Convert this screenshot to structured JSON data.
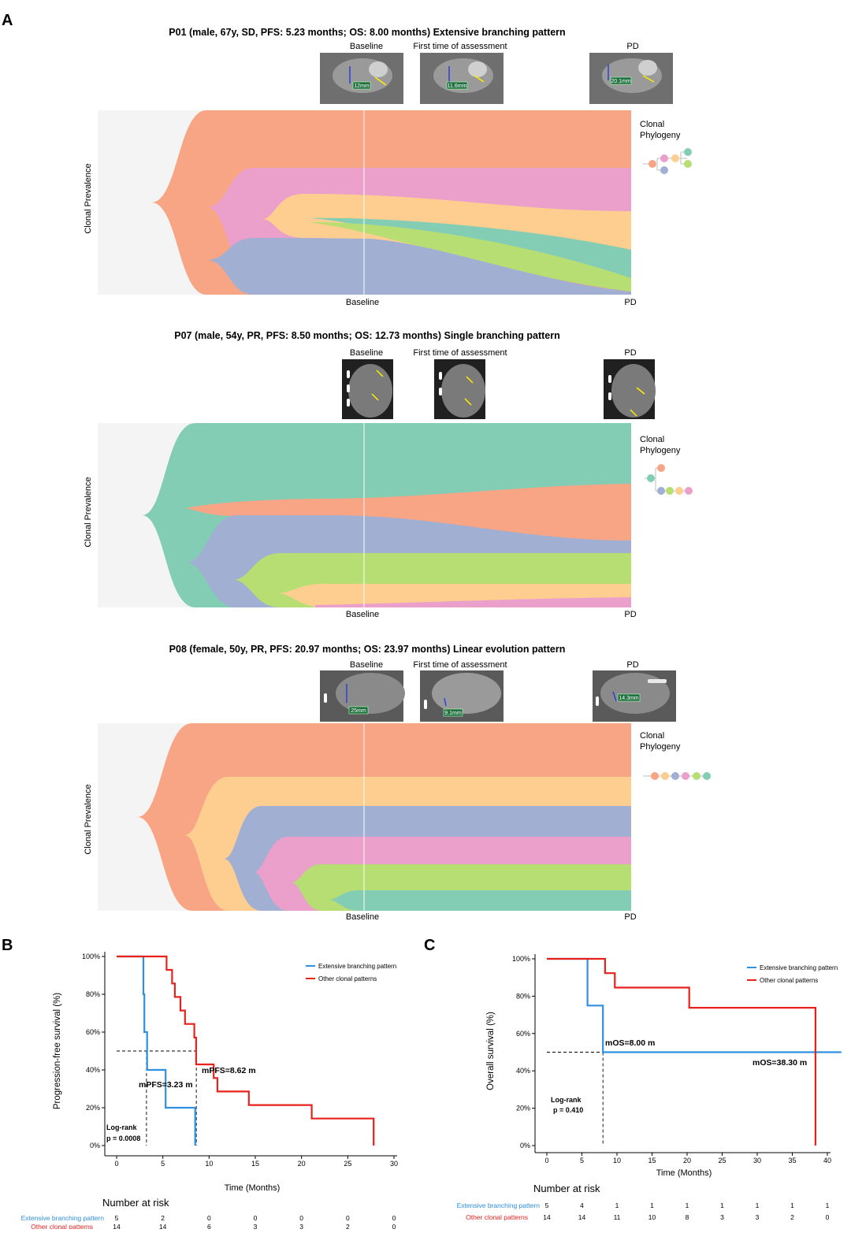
{
  "panel_letters": {
    "a": "A",
    "b": "B",
    "c": "C"
  },
  "colors": {
    "orange": "#F8A586",
    "pink": "#EAA0CB",
    "yellow": "#FDCE8F",
    "green": "#B7DE73",
    "teal": "#83CDB4",
    "blue": "#A1AFD2",
    "bg": "#F4F4F4",
    "km_blue": "#2F8FE0",
    "km_red": "#E8211C"
  },
  "fish_common": {
    "ylabel": "Clonal Prevalence",
    "x_labels": [
      "Baseline",
      "PD"
    ],
    "phylo_title": "Clonal\nPhylogeny",
    "timepoints": [
      "Baseline",
      "First time of assessment",
      "PD"
    ]
  },
  "fish_plots": [
    {
      "title": "P01 (male, 67y, SD, PFS: 5.23 months; OS: 8.00 months) Extensive branching pattern",
      "scan_labels": [
        "12mm",
        "11.6mm",
        "20.1mm"
      ]
    },
    {
      "title": "P07 (male, 54y, PR, PFS: 8.50 months; OS: 12.73 months) Single branching pattern",
      "scan_labels": [
        "",
        "",
        ""
      ]
    },
    {
      "title": "P08 (female, 50y, PR, PFS: 20.97 months; OS: 23.97 months) Linear evolution pattern",
      "scan_labels": [
        "25mm",
        "9.1mm",
        "14.3mm"
      ]
    }
  ],
  "chart_data": [
    {
      "type": "line",
      "panel": "B",
      "title": "",
      "xlabel": "Time (Months)",
      "ylabel": "Progression-free survival (%)",
      "xlim": [
        0,
        30
      ],
      "ylim": [
        0,
        100
      ],
      "x_ticks": [
        0,
        5,
        10,
        15,
        20,
        25,
        30
      ],
      "y_ticks": [
        "0%",
        "20%",
        "40%",
        "60%",
        "80%",
        "100%"
      ],
      "legend": [
        "Extensive branching pattern",
        "Other clonal patterns"
      ],
      "series": [
        {
          "name": "Extensive branching pattern",
          "color": "km_blue",
          "x": [
            0,
            2.9,
            2.9,
            3.0,
            3.0,
            3.3,
            3.3,
            5.3,
            5.3,
            8.5,
            8.5
          ],
          "y": [
            100,
            100,
            80,
            80,
            60,
            60,
            40,
            40,
            20,
            20,
            0
          ]
        },
        {
          "name": "Other clonal patterns",
          "color": "km_red",
          "x": [
            0,
            5.4,
            5.4,
            6.0,
            6.0,
            6.3,
            6.3,
            6.9,
            6.9,
            7.4,
            7.4,
            8.4,
            8.4,
            8.6,
            8.6,
            10.5,
            10.5,
            10.9,
            10.9,
            14.3,
            14.3,
            21.1,
            21.1,
            27.8,
            27.8
          ],
          "y": [
            100,
            100,
            92.9,
            92.9,
            85.7,
            85.7,
            78.6,
            78.6,
            71.4,
            71.4,
            64.3,
            64.3,
            57.1,
            57.1,
            42.9,
            42.9,
            35.7,
            35.7,
            28.6,
            28.6,
            21.4,
            21.4,
            14.3,
            14.3,
            0
          ]
        }
      ],
      "annotations": [
        "mPFS=8.62 m",
        "mPFS=3.23 m",
        "Log-rank",
        "p = 0.0008"
      ],
      "median_lines": [
        3.23,
        8.62
      ],
      "risk_title": "Number at risk",
      "risk_table": [
        {
          "name": "Extensive branching pattern",
          "values": [
            "5",
            "2",
            "0",
            "0",
            "0",
            "0",
            "0"
          ]
        },
        {
          "name": "Other clonal patterns",
          "values": [
            "14",
            "14",
            "6",
            "3",
            "3",
            "2",
            "0"
          ]
        }
      ]
    },
    {
      "type": "line",
      "panel": "C",
      "title": "",
      "xlabel": "Time (Months)",
      "ylabel": "Overall survival (%)",
      "xlim": [
        0,
        40
      ],
      "ylim": [
        0,
        100
      ],
      "x_ticks": [
        0,
        5,
        10,
        15,
        20,
        25,
        30,
        35,
        40
      ],
      "y_ticks": [
        "0%",
        "20%",
        "40%",
        "60%",
        "80%",
        "100%"
      ],
      "legend": [
        "Extensive branching pattern",
        "Other clonal patterns"
      ],
      "series": [
        {
          "name": "Extensive branching pattern",
          "color": "km_blue",
          "x": [
            0,
            5.8,
            5.8,
            8.0,
            8.0,
            42
          ],
          "y": [
            100,
            100,
            75,
            75,
            50,
            50
          ]
        },
        {
          "name": "Other clonal patterns",
          "color": "km_red",
          "x": [
            0,
            8.3,
            8.3,
            9.7,
            9.7,
            20.3,
            20.3,
            38.3,
            38.3
          ],
          "y": [
            100,
            100,
            92.3,
            92.3,
            84.6,
            84.6,
            73.8,
            73.8,
            0
          ]
        }
      ],
      "annotations": [
        "mOS=8.00 m",
        "mOS=38.30 m",
        "Log-rank",
        "p = 0.410"
      ],
      "median_lines": [
        8.0
      ],
      "risk_title": "Number at risk",
      "risk_table": [
        {
          "name": "Extensive branching pattern",
          "values": [
            "5",
            "4",
            "1",
            "1",
            "1",
            "1",
            "1",
            "1",
            "1"
          ]
        },
        {
          "name": "Other clonal patterns",
          "values": [
            "14",
            "14",
            "11",
            "10",
            "8",
            "3",
            "3",
            "2",
            "0"
          ]
        }
      ]
    }
  ]
}
